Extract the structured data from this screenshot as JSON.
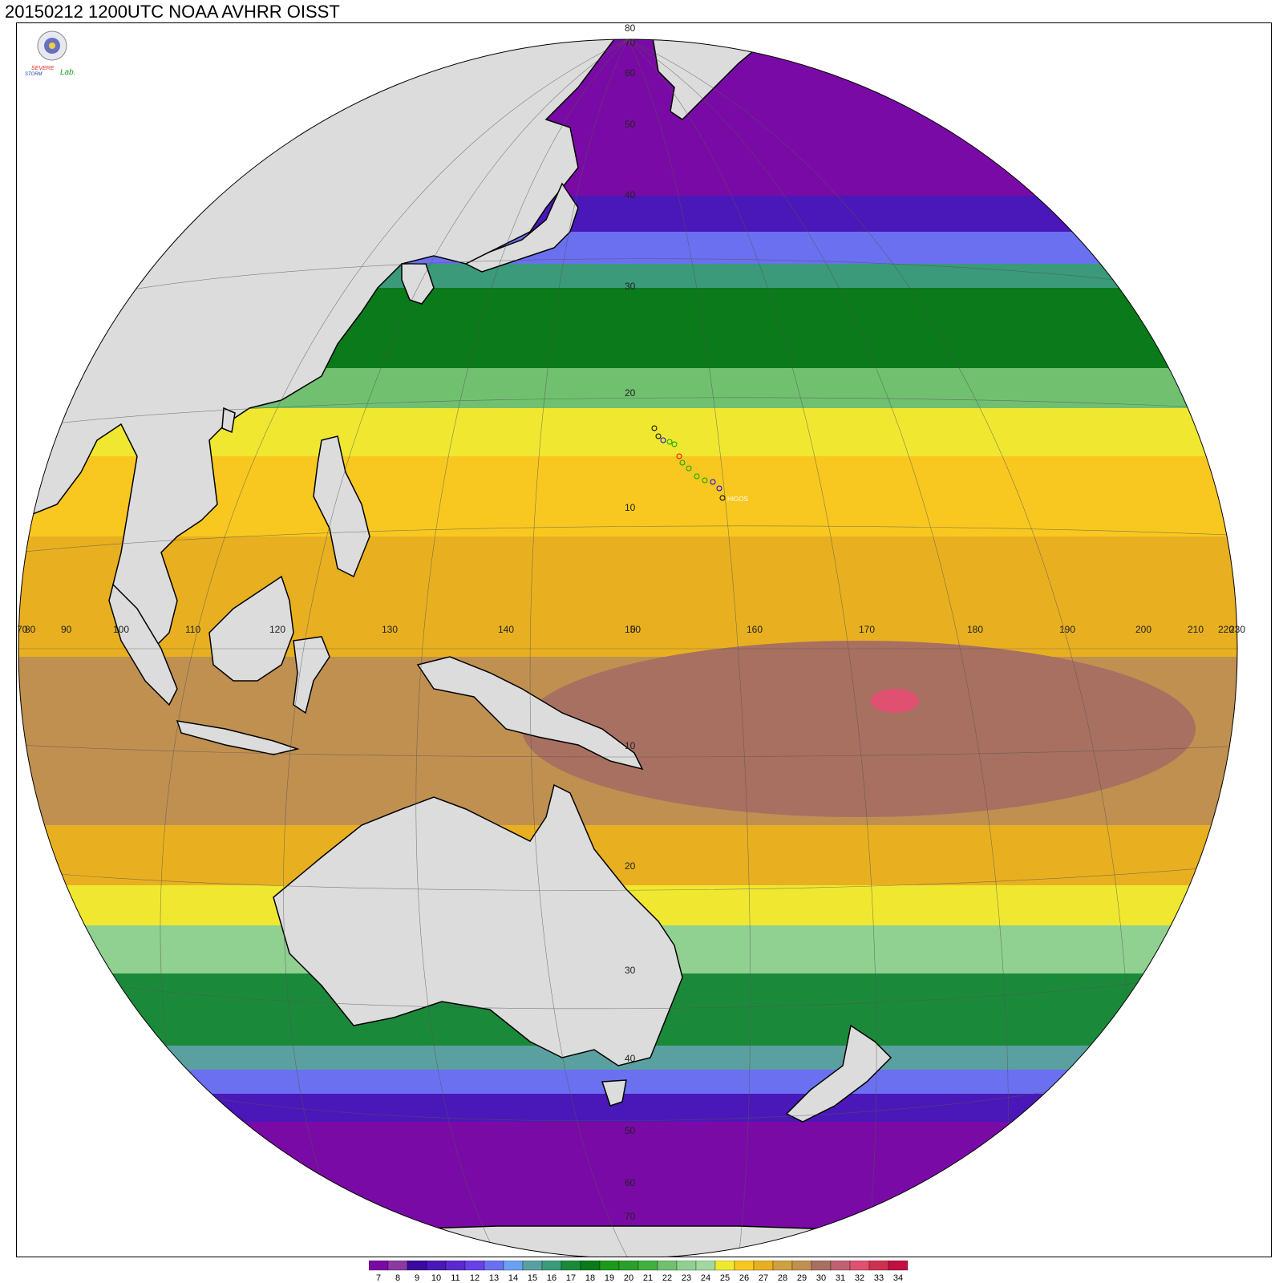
{
  "title": "20150212 1200UTC NOAA AVHRR OISST",
  "logo": {
    "text_severe": "SEVERE",
    "text_storm": "STORM",
    "text_lab": "Lab."
  },
  "storm_label": "HIGOS",
  "colors": {
    "land": "#dcdcdc",
    "coast": "#000000",
    "grid": "#555555",
    "background": "#ffffff"
  },
  "legend": {
    "levels": [
      "7",
      "8",
      "9",
      "10",
      "11",
      "12",
      "13",
      "14",
      "15",
      "16",
      "17",
      "18",
      "19",
      "20",
      "21",
      "22",
      "23",
      "24",
      "25",
      "26",
      "27",
      "28",
      "29",
      "30",
      "31",
      "32",
      "33",
      "34"
    ],
    "colors": [
      "#7a0aa6",
      "#8a3aa0",
      "#3a0aa0",
      "#4a18b8",
      "#5a2ad0",
      "#6a40e8",
      "#6a70f0",
      "#6aa0f0",
      "#5aa0a0",
      "#3a9a7a",
      "#1a8a3a",
      "#0a7a1a",
      "#1a9a1a",
      "#2aa02a",
      "#40b040",
      "#70c070",
      "#90d090",
      "#a0d8a0",
      "#f0e830",
      "#f8c820",
      "#e8b020",
      "#d0a040",
      "#c09050",
      "#a87060",
      "#c06070",
      "#e05070",
      "#d03050",
      "#c01040"
    ]
  },
  "grid_labels": {
    "longitudes": [
      "70",
      "80",
      "90",
      "100",
      "110",
      "120",
      "130",
      "140",
      "150",
      "160",
      "170",
      "180",
      "190",
      "200",
      "210",
      "220",
      "230"
    ],
    "latitudes": [
      "80",
      "70",
      "60",
      "50",
      "40",
      "30",
      "20",
      "10",
      "0",
      "10",
      "20",
      "30",
      "40",
      "50",
      "60",
      "70"
    ]
  },
  "places": []
}
